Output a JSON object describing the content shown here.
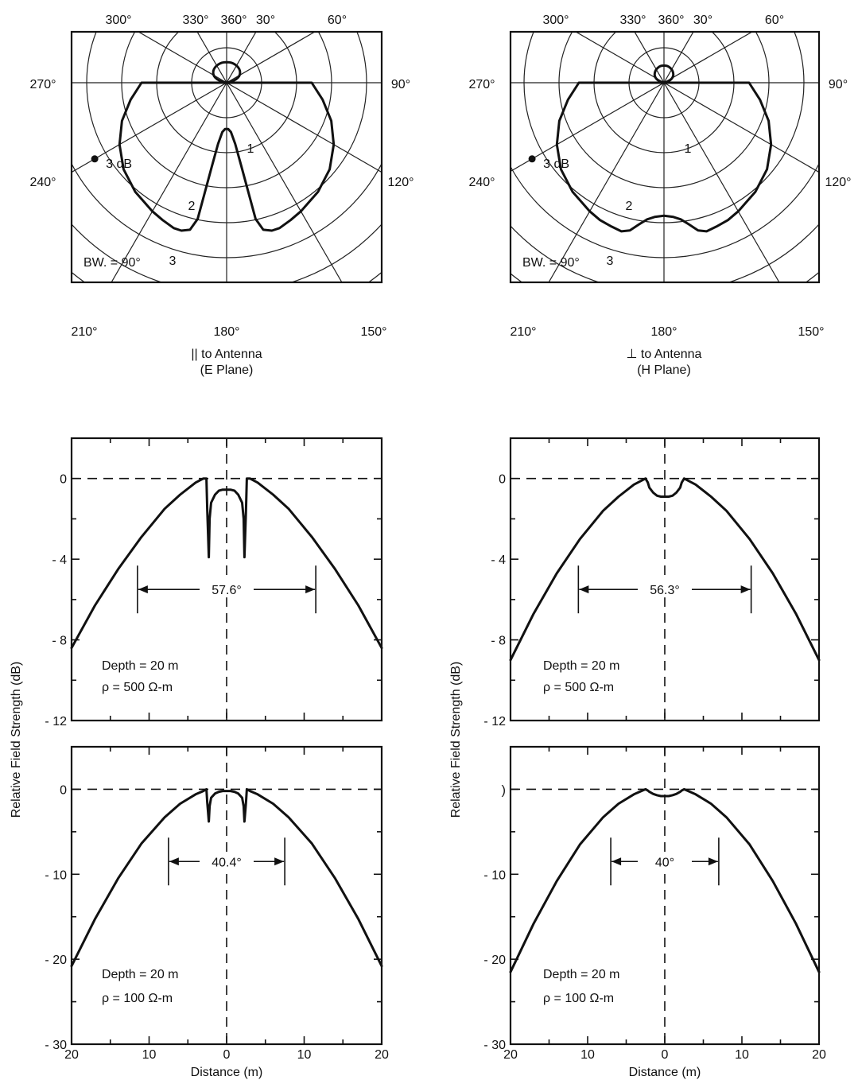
{
  "chart_data": [
    {
      "id": "polar_e",
      "type": "polar",
      "angle_labels": [
        "300°",
        "330°",
        "360°",
        "30°",
        "60°",
        "270°",
        "90°",
        "240°",
        "120°",
        "210°",
        "180°",
        "150°"
      ],
      "angle_label_values": [
        300,
        330,
        360,
        30,
        60,
        270,
        90,
        240,
        120,
        210,
        180,
        150
      ],
      "ring_labels": [
        "1",
        "2",
        "3"
      ],
      "annotations": {
        "three_db": "3 dB",
        "beamwidth": "BW. = 90°"
      },
      "caption": [
        "|| to Antenna",
        "(E Plane)"
      ],
      "pattern": {
        "notch": true,
        "theta_deg": [
          90,
          100,
          110,
          120,
          130,
          140,
          150,
          155,
          160,
          163,
          166,
          168,
          170,
          172,
          175,
          178,
          180
        ],
        "r": [
          0.55,
          0.63,
          0.72,
          0.8,
          0.87,
          0.92,
          0.96,
          0.98,
          1.0,
          1.0,
          0.98,
          0.9,
          0.55,
          0.4,
          0.32,
          0.3,
          0.3
        ]
      },
      "back_lobe_r": 0.06
    },
    {
      "id": "polar_h",
      "type": "polar",
      "angle_labels": [
        "300°",
        "330°",
        "360°",
        "30°",
        "60°",
        "270°",
        "90°",
        "240°",
        "120°",
        "210°",
        "180°",
        "150°"
      ],
      "angle_label_values": [
        300,
        330,
        360,
        30,
        60,
        270,
        90,
        240,
        120,
        210,
        180,
        150
      ],
      "ring_labels": [
        "1",
        "2",
        "3"
      ],
      "annotations": {
        "three_db": "3 dB",
        "beamwidth": "BW. = 90°"
      },
      "caption": [
        "⊥ to Antenna",
        "(H Plane)"
      ],
      "pattern": {
        "notch": false,
        "theta_deg": [
          90,
          100,
          110,
          120,
          130,
          140,
          150,
          155,
          160,
          164,
          167,
          170,
          173,
          176,
          180
        ],
        "r": [
          0.55,
          0.63,
          0.72,
          0.8,
          0.87,
          0.92,
          0.96,
          0.98,
          0.99,
          1.0,
          0.98,
          0.93,
          0.89,
          0.87,
          0.86
        ]
      },
      "back_lobe_r": 0.05
    },
    {
      "id": "cut_e_500",
      "type": "line",
      "ylabel": "Relative Field Strength (dB)",
      "xlim": [
        -20,
        20
      ],
      "ylim": [
        -12,
        2
      ],
      "x_ticks": [
        -20,
        -10,
        0,
        10,
        20
      ],
      "y_ticks": [
        0,
        -4,
        -8,
        -12
      ],
      "y_tick_labels": [
        "0",
        "- 4",
        "- 8",
        "- 12"
      ],
      "x": [
        -20,
        -17,
        -14,
        -11,
        -8,
        -6,
        -4,
        -3,
        -2.6,
        -2.5,
        -2.3,
        -2.2,
        -2,
        -1.5,
        -1,
        -0.5,
        0,
        0.5,
        1,
        1.5,
        2,
        2.2,
        2.3,
        2.5,
        2.6,
        3,
        4,
        6,
        8,
        11,
        14,
        17,
        20
      ],
      "y": [
        -8.4,
        -6.3,
        -4.5,
        -2.9,
        -1.5,
        -0.8,
        -0.2,
        0,
        0,
        -1.5,
        -3.9,
        -2,
        -1.2,
        -0.8,
        -0.6,
        -0.55,
        -0.55,
        -0.55,
        -0.6,
        -0.8,
        -1.2,
        -2,
        -3.9,
        -1.5,
        0,
        0,
        -0.2,
        -0.8,
        -1.5,
        -2.9,
        -4.5,
        -6.3,
        -8.4
      ],
      "beamwidth": {
        "label": "57.6°",
        "x1": -11.5,
        "x2": 11.5,
        "y": -5.5
      },
      "annotation": [
        "Depth = 20 m",
        "ρ = 500 Ω-m"
      ]
    },
    {
      "id": "cut_h_500",
      "type": "line",
      "xlim": [
        -20,
        20
      ],
      "ylim": [
        -12,
        2
      ],
      "x_ticks": [
        -20,
        -10,
        0,
        10,
        20
      ],
      "y_ticks": [
        0,
        -4,
        -8,
        -12
      ],
      "y_tick_labels": [
        "0",
        "- 4",
        "- 8",
        "- 12"
      ],
      "x": [
        -20,
        -17,
        -14,
        -11,
        -8,
        -6,
        -4,
        -2.5,
        -2.2,
        -2,
        -1.5,
        -1,
        -0.5,
        0,
        0.5,
        1,
        1.5,
        2,
        2.2,
        2.5,
        4,
        6,
        8,
        11,
        14,
        17,
        20
      ],
      "y": [
        -9,
        -6.7,
        -4.7,
        -3,
        -1.6,
        -0.9,
        -0.3,
        0,
        -0.2,
        -0.45,
        -0.7,
        -0.85,
        -0.9,
        -0.9,
        -0.9,
        -0.85,
        -0.7,
        -0.45,
        -0.2,
        0,
        -0.3,
        -0.9,
        -1.6,
        -3,
        -4.7,
        -6.7,
        -9
      ],
      "beamwidth": {
        "label": "56.3°",
        "x1": -11.2,
        "x2": 11.2,
        "y": -5.5
      },
      "annotation": [
        "Depth = 20 m",
        "ρ = 500 Ω-m"
      ]
    },
    {
      "id": "cut_e_100",
      "type": "line",
      "xlabel": "Distance (m)",
      "xlim": [
        -20,
        20
      ],
      "ylim": [
        -30,
        5
      ],
      "x_ticks": [
        -20,
        -10,
        0,
        10,
        20
      ],
      "x_tick_labels": [
        "20",
        "10",
        "0",
        "10",
        "20"
      ],
      "y_ticks": [
        0,
        -10,
        -20,
        -30
      ],
      "y_tick_labels": [
        "0",
        "- 10",
        "- 20",
        "- 30"
      ],
      "x": [
        -20,
        -17,
        -14,
        -11,
        -8,
        -6,
        -4,
        -3,
        -2.6,
        -2.5,
        -2.3,
        -2.2,
        -2,
        -1.5,
        -1,
        -0.5,
        0,
        0.5,
        1,
        1.5,
        2,
        2.2,
        2.3,
        2.5,
        2.6,
        3,
        4,
        6,
        8,
        11,
        14,
        17,
        20
      ],
      "y": [
        -20.8,
        -15.3,
        -10.5,
        -6.4,
        -3.3,
        -1.7,
        -0.6,
        -0.2,
        0,
        -1.5,
        -3.8,
        -2,
        -1,
        -0.5,
        -0.3,
        -0.2,
        -0.2,
        -0.2,
        -0.3,
        -0.5,
        -1,
        -2,
        -3.8,
        -1.5,
        0,
        -0.2,
        -0.6,
        -1.7,
        -3.3,
        -6.4,
        -10.5,
        -15.3,
        -20.8
      ],
      "beamwidth": {
        "label": "40.4°",
        "x1": -7.5,
        "x2": 7.5,
        "y": -8.5
      },
      "annotation": [
        "Depth = 20 m",
        "ρ = 100 Ω-m"
      ]
    },
    {
      "id": "cut_h_100",
      "type": "line",
      "xlabel": "Distance (m)",
      "xlim": [
        -20,
        20
      ],
      "ylim": [
        -30,
        5
      ],
      "x_ticks": [
        -20,
        -10,
        0,
        10,
        20
      ],
      "x_tick_labels": [
        "20",
        "10",
        "0",
        "10",
        "20"
      ],
      "y_ticks": [
        0,
        -10,
        -20,
        -30
      ],
      "y_tick_labels": [
        ")",
        "- 10",
        "- 20",
        "- 30"
      ],
      "x": [
        -20,
        -17,
        -14,
        -11,
        -8,
        -6,
        -4,
        -2.5,
        -2.2,
        -2,
        -1.5,
        -1,
        -0.5,
        0,
        0.5,
        1,
        1.5,
        2,
        2.2,
        2.5,
        4,
        6,
        8,
        11,
        14,
        17,
        20
      ],
      "y": [
        -21.5,
        -15.8,
        -10.8,
        -6.5,
        -3.3,
        -1.7,
        -0.6,
        0,
        -0.15,
        -0.3,
        -0.55,
        -0.7,
        -0.8,
        -0.8,
        -0.8,
        -0.7,
        -0.55,
        -0.3,
        -0.15,
        0,
        -0.6,
        -1.7,
        -3.3,
        -6.5,
        -10.8,
        -15.8,
        -21.5
      ],
      "beamwidth": {
        "label": "40°",
        "x1": -7,
        "x2": 7,
        "y": -8.5
      },
      "annotation": [
        "Depth = 20 m",
        "ρ = 100 Ω-m"
      ]
    }
  ]
}
